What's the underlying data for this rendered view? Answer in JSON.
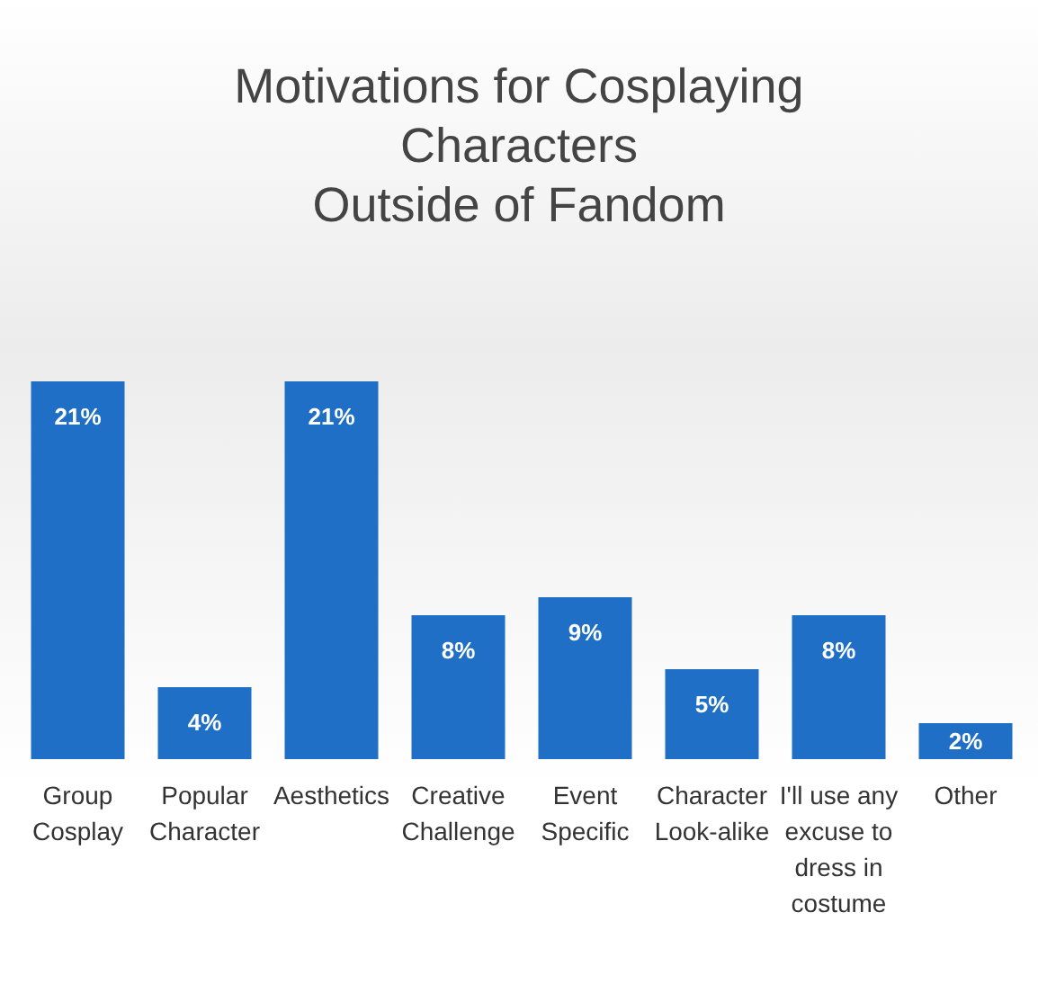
{
  "chart_data": {
    "type": "bar",
    "title": "Motivations for Cosplaying\nCharacters\nOutside of Fandom",
    "categories": [
      "Group Cosplay",
      "Popular Character",
      "Aesthetics",
      "Creative Challenge",
      "Event Specific",
      "Character Look-alike",
      "I'll use any excuse to dress in costume",
      "Other"
    ],
    "values": [
      21,
      4,
      21,
      8,
      9,
      5,
      8,
      2
    ],
    "value_labels": [
      "21%",
      "4%",
      "21%",
      "8%",
      "9%",
      "5%",
      "8%",
      "2%"
    ],
    "color": "#1f6fc6"
  }
}
